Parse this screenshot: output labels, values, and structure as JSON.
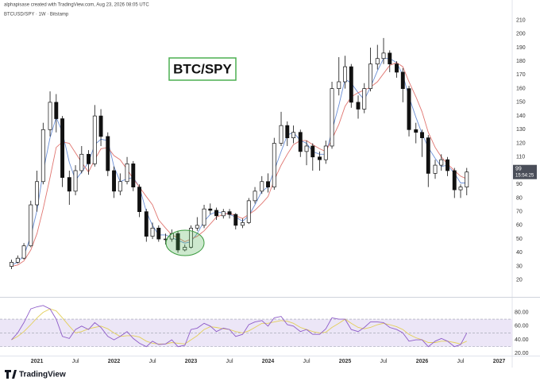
{
  "header": {
    "credit": "alphapisase created with TradingView.com, Aug 23, 2026 08:05 UTC",
    "symbol": "BTCUSD/SPY · 1W · Bitstamp"
  },
  "footer": {
    "logo": "TradingView"
  },
  "chart_data": {
    "type": "candlestick",
    "annotation": "BTC/SPY",
    "xlim": [
      2020.52,
      2027.17
    ],
    "xticks": [
      2021,
      {
        "value": 2021.5,
        "label": "Jul"
      },
      2022,
      {
        "value": 2022.5,
        "label": "Jul"
      },
      2023,
      {
        "value": 2023.5,
        "label": "Jul"
      },
      2024,
      {
        "value": 2024.5,
        "label": "Jul"
      },
      2025,
      {
        "value": 2025.5,
        "label": "Jul"
      },
      2026,
      {
        "value": 2026.5,
        "label": "Jul"
      },
      2027
    ],
    "ylim": [
      10,
      219
    ],
    "yticks": [
      20,
      30,
      40,
      50,
      60,
      70,
      80,
      90,
      100,
      110,
      120,
      130,
      140,
      150,
      160,
      170,
      180,
      190,
      200,
      210
    ],
    "grid": false,
    "up_color": "#ffffff",
    "down_color": "#111111",
    "last_price": 99,
    "countdown": "15:54:25",
    "x": [
      2020.67,
      2020.75,
      2020.83,
      2020.92,
      2021.0,
      2021.08,
      2021.17,
      2021.25,
      2021.33,
      2021.42,
      2021.5,
      2021.58,
      2021.67,
      2021.75,
      2021.83,
      2021.92,
      2022.0,
      2022.08,
      2022.17,
      2022.25,
      2022.33,
      2022.42,
      2022.5,
      2022.58,
      2022.67,
      2022.75,
      2022.83,
      2022.92,
      2023.0,
      2023.08,
      2023.17,
      2023.25,
      2023.33,
      2023.42,
      2023.5,
      2023.58,
      2023.67,
      2023.75,
      2023.83,
      2023.92,
      2024.0,
      2024.08,
      2024.17,
      2024.25,
      2024.33,
      2024.42,
      2024.5,
      2024.58,
      2024.67,
      2024.75,
      2024.83,
      2024.92,
      2025.0,
      2025.08,
      2025.17,
      2025.25,
      2025.33,
      2025.42,
      2025.5,
      2025.58,
      2025.67,
      2025.75,
      2025.83,
      2025.92,
      2026.0,
      2026.08,
      2026.17,
      2026.25,
      2026.33,
      2026.42,
      2026.5,
      2026.58
    ],
    "open": [
      30,
      33,
      36,
      45,
      75,
      92,
      130,
      150,
      138,
      95,
      85,
      100,
      112,
      105,
      140,
      125,
      100,
      85,
      92,
      105,
      88,
      70,
      52,
      58,
      50,
      50,
      54,
      42,
      44,
      58,
      60,
      72,
      71,
      67,
      70,
      68,
      60,
      62,
      78,
      85,
      92,
      88,
      120,
      133,
      124,
      128,
      114,
      118,
      110,
      108,
      118,
      160,
      165,
      176,
      150,
      145,
      160,
      178,
      182,
      186,
      178,
      172,
      160,
      130,
      128,
      124,
      98,
      104,
      108,
      100,
      86,
      88
    ],
    "high": [
      35,
      38,
      47,
      78,
      100,
      135,
      158,
      156,
      140,
      100,
      104,
      118,
      115,
      148,
      145,
      128,
      103,
      98,
      110,
      107,
      90,
      72,
      62,
      60,
      54,
      57,
      56,
      46,
      60,
      66,
      75,
      76,
      73,
      72,
      72,
      69,
      65,
      80,
      88,
      96,
      98,
      124,
      143,
      136,
      133,
      130,
      122,
      120,
      114,
      122,
      165,
      183,
      184,
      178,
      155,
      164,
      190,
      192,
      197,
      188,
      180,
      175,
      162,
      135,
      130,
      126,
      108,
      112,
      110,
      102,
      90,
      102
    ],
    "low": [
      28,
      32,
      35,
      44,
      70,
      90,
      125,
      128,
      88,
      75,
      82,
      98,
      97,
      103,
      118,
      96,
      80,
      82,
      90,
      85,
      66,
      48,
      50,
      48,
      46,
      48,
      40,
      41,
      43,
      56,
      58,
      68,
      64,
      65,
      65,
      57,
      58,
      61,
      76,
      83,
      84,
      86,
      118,
      118,
      120,
      110,
      104,
      100,
      100,
      105,
      116,
      155,
      160,
      146,
      138,
      142,
      158,
      174,
      178,
      172,
      168,
      150,
      125,
      120,
      110,
      88,
      94,
      100,
      96,
      80,
      80,
      82
    ],
    "close": [
      33,
      36,
      45,
      75,
      92,
      130,
      150,
      138,
      95,
      85,
      100,
      112,
      105,
      140,
      125,
      100,
      85,
      92,
      105,
      88,
      70,
      52,
      58,
      50,
      50,
      54,
      42,
      44,
      58,
      60,
      72,
      71,
      67,
      70,
      68,
      60,
      62,
      78,
      85,
      92,
      88,
      120,
      133,
      124,
      128,
      114,
      118,
      110,
      108,
      118,
      160,
      165,
      176,
      150,
      145,
      160,
      178,
      182,
      186,
      178,
      172,
      160,
      130,
      128,
      124,
      98,
      104,
      108,
      100,
      86,
      88,
      99
    ],
    "moving_averages": [
      {
        "color": "#6b8fd6",
        "values": [
          31,
          33,
          38,
          52,
          71,
          99,
          124,
          139,
          128,
          106,
          93,
          99,
          106,
          119,
          123,
          122,
          103,
          92,
          94,
          95,
          88,
          70,
          60,
          53,
          53,
          51,
          49,
          47,
          48,
          54,
          63,
          68,
          70,
          69,
          68,
          66,
          63,
          67,
          75,
          85,
          88,
          100,
          114,
          126,
          128,
          122,
          120,
          114,
          112,
          112,
          129,
          148,
          167,
          164,
          157,
          152,
          161,
          173,
          182,
          182,
          179,
          170,
          154,
          139,
          127,
          117,
          109,
          103,
          104,
          98,
          91,
          91
        ]
      },
      {
        "color": "#e07570",
        "values": [
          30,
          31,
          34,
          42,
          54,
          72,
          95,
          117,
          121,
          120,
          113,
          106,
          99,
          108,
          116,
          117,
          111,
          108,
          101,
          94,
          88,
          81,
          75,
          64,
          58,
          53,
          51,
          48,
          50,
          52,
          56,
          61,
          66,
          68,
          69,
          67,
          65,
          68,
          71,
          76,
          81,
          93,
          104,
          112,
          119,
          122,
          122,
          119,
          116,
          114,
          123,
          134,
          147,
          154,
          157,
          159,
          161,
          165,
          171,
          177,
          179,
          176,
          165,
          154,
          143,
          128,
          117,
          110,
          105,
          100,
          96,
          94
        ]
      }
    ],
    "rsi": {
      "ylim": [
        17,
        99
      ],
      "yticks": [
        {
          "value": 20,
          "label": "20.00"
        },
        {
          "value": 40,
          "label": "40.00"
        },
        {
          "value": 60,
          "label": "60.00"
        },
        {
          "value": 80,
          "label": "80.00"
        }
      ],
      "band": [
        30,
        70
      ],
      "midline": 50,
      "band_color": "#ece6f7",
      "color": "#8e5cc8",
      "values": [
        40,
        50,
        65,
        85,
        88,
        90,
        85,
        70,
        45,
        42,
        55,
        60,
        55,
        65,
        58,
        45,
        40,
        45,
        52,
        42,
        35,
        30,
        38,
        33,
        34,
        40,
        30,
        32,
        55,
        57,
        64,
        60,
        52,
        57,
        55,
        45,
        48,
        62,
        66,
        68,
        60,
        72,
        74,
        62,
        60,
        52,
        55,
        48,
        48,
        56,
        72,
        70,
        70,
        55,
        52,
        58,
        66,
        66,
        65,
        58,
        55,
        50,
        38,
        40,
        40,
        30,
        38,
        42,
        38,
        30,
        33,
        50
      ],
      "signal_color": "#e3cf5a",
      "signal": [
        40,
        45,
        52,
        62,
        72,
        80,
        85,
        82,
        72,
        60,
        50,
        52,
        56,
        58,
        60,
        56,
        50,
        45,
        46,
        46,
        44,
        38,
        35,
        34,
        34,
        36,
        35,
        34,
        40,
        46,
        55,
        59,
        58,
        56,
        55,
        52,
        50,
        53,
        58,
        64,
        64,
        66,
        68,
        67,
        64,
        58,
        55,
        52,
        50,
        51,
        58,
        64,
        70,
        64,
        58,
        56,
        58,
        62,
        64,
        62,
        59,
        55,
        48,
        43,
        40,
        36,
        36,
        38,
        38,
        36,
        34,
        38
      ]
    }
  }
}
